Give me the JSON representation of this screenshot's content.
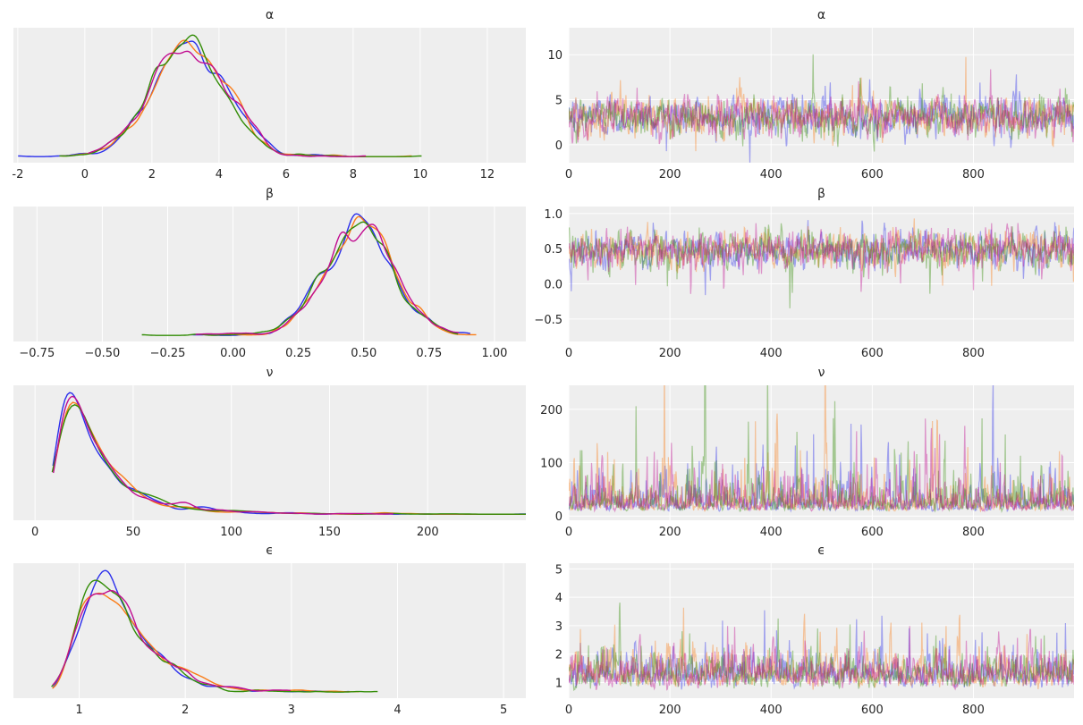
{
  "chart_data": [
    {
      "type": "line",
      "kind": "kde",
      "title": "α",
      "xticks": [
        -2,
        0,
        2,
        4,
        6,
        8,
        10,
        12
      ],
      "xlim": [
        -2.13,
        13.15
      ],
      "grid": true
    },
    {
      "type": "line",
      "kind": "trace",
      "title": "α",
      "xticks": [
        0,
        200,
        400,
        600,
        800
      ],
      "yticks": [
        0,
        5,
        10
      ],
      "xlim": [
        0,
        999
      ],
      "ylim": [
        -2,
        13
      ],
      "grid": true
    },
    {
      "type": "line",
      "kind": "kde",
      "title": "β",
      "xticks": [
        -0.75,
        -0.5,
        -0.25,
        0.0,
        0.25,
        0.5,
        0.75,
        1.0
      ],
      "xtick_labels": [
        "−0.75",
        "−0.50",
        "−0.25",
        "0.00",
        "0.25",
        "0.50",
        "0.75",
        "1.00"
      ],
      "xlim": [
        -0.84,
        1.12
      ],
      "grid": true
    },
    {
      "type": "line",
      "kind": "trace",
      "title": "β",
      "xticks": [
        0,
        200,
        400,
        600,
        800
      ],
      "yticks": [
        -0.5,
        0.0,
        0.5,
        1.0
      ],
      "ytick_labels": [
        "−0.5",
        "0.0",
        "0.5",
        "1.0"
      ],
      "xlim": [
        0,
        999
      ],
      "ylim": [
        -0.82,
        1.1
      ],
      "grid": true
    },
    {
      "type": "line",
      "kind": "kde",
      "title": "ν",
      "xticks": [
        0,
        50,
        100,
        150,
        200
      ],
      "xlim": [
        -11,
        250
      ],
      "grid": true
    },
    {
      "type": "line",
      "kind": "trace",
      "title": "ν",
      "xticks": [
        0,
        200,
        400,
        600,
        800
      ],
      "yticks": [
        0,
        100,
        200
      ],
      "xlim": [
        0,
        999
      ],
      "ylim": [
        -8,
        245
      ],
      "grid": true
    },
    {
      "type": "line",
      "kind": "kde",
      "title": "ϵ",
      "xticks": [
        1,
        2,
        3,
        4,
        5
      ],
      "xlim": [
        0.38,
        5.21
      ],
      "grid": true
    },
    {
      "type": "line",
      "kind": "trace",
      "title": "ϵ",
      "xticks": [
        0,
        200,
        400,
        600,
        800
      ],
      "yticks": [
        1,
        2,
        3,
        4,
        5
      ],
      "xlim": [
        0,
        999
      ],
      "ylim": [
        0.45,
        5.2
      ],
      "grid": true
    }
  ],
  "chains": 4,
  "draws": 1000,
  "colors": {
    "chains": [
      "#2a2eec",
      "#fa7c17",
      "#328c06",
      "#c10c90"
    ],
    "background": "#eeeeee",
    "grid": "#ffffff"
  }
}
